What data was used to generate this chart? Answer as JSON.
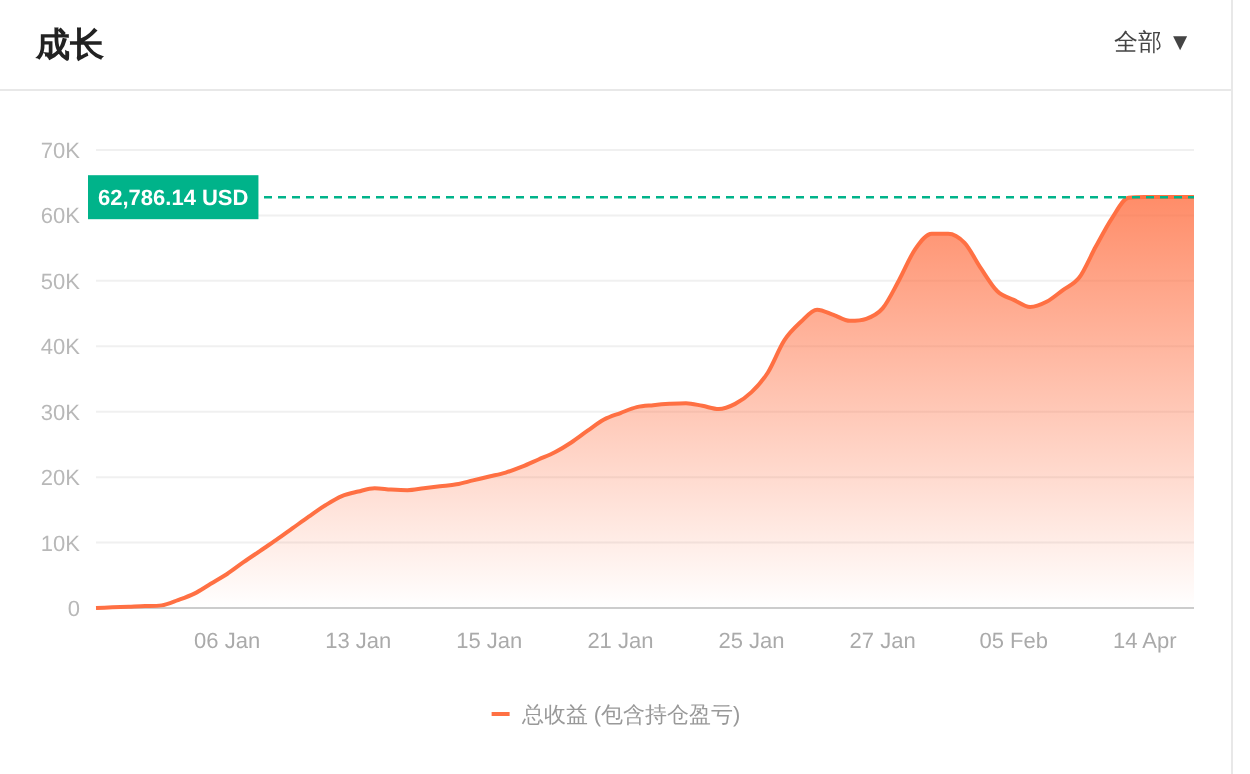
{
  "chart_data": {
    "type": "area",
    "title": "成长",
    "annotations": [
      "全部 ▼"
    ],
    "categories": [
      null,
      null,
      null,
      null,
      null,
      null,
      null,
      null,
      "06 Jan",
      null,
      null,
      null,
      null,
      null,
      null,
      null,
      "13 Jan",
      null,
      null,
      null,
      null,
      null,
      null,
      null,
      "15 Jan",
      null,
      null,
      null,
      null,
      null,
      null,
      null,
      "21 Jan",
      null,
      null,
      null,
      null,
      null,
      null,
      null,
      "25 Jan",
      null,
      null,
      null,
      null,
      null,
      null,
      null,
      "27 Jan",
      null,
      null,
      null,
      null,
      null,
      null,
      null,
      "05 Feb",
      null,
      null,
      null,
      null,
      null,
      null,
      null,
      "14 Apr",
      null,
      null,
      null
    ],
    "series": [
      {
        "name": "总收益 (包含持仓盈亏)",
        "color": "#ff7043",
        "values": [
          0,
          100,
          200,
          300,
          400,
          1200,
          2200,
          3700,
          5200,
          7000,
          8700,
          10400,
          12200,
          14000,
          15700,
          17100,
          17800,
          18300,
          18100,
          18000,
          18300,
          18600,
          18900,
          19500,
          20100,
          20700,
          21600,
          22700,
          23800,
          25300,
          27100,
          28800,
          29800,
          30700,
          31000,
          31200,
          31300,
          30900,
          30400,
          31200,
          33000,
          36000,
          40900,
          43700,
          45600,
          44800,
          43900,
          44200,
          45800,
          50100,
          54900,
          57200,
          57200,
          55800,
          51900,
          48400,
          47100,
          46000,
          46800,
          48600,
          50500,
          55200,
          59600,
          62700,
          62800,
          62800,
          62800,
          62800
        ]
      }
    ],
    "ylim": [
      0,
      70000
    ],
    "yticks": [
      0,
      {
        "value": 10000,
        "label": "10K"
      },
      {
        "value": 20000,
        "label": "20K"
      },
      {
        "value": 30000,
        "label": "30K"
      },
      {
        "value": 40000,
        "label": "40K"
      },
      {
        "value": 50000,
        "label": "50K"
      },
      {
        "value": 60000,
        "label": "60K"
      },
      {
        "value": 70000,
        "label": "70K"
      }
    ],
    "ref_lines": [
      {
        "axis": "y",
        "value": 62786.14,
        "label": "62,786.14 USD",
        "color": "#00b38a",
        "line_style": "dashed"
      }
    ],
    "grid": "y",
    "legend": "bottom"
  }
}
